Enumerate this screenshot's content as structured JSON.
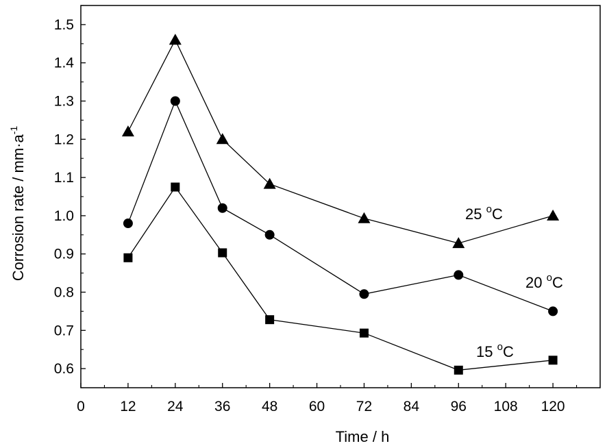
{
  "chart_data": {
    "type": "line",
    "xlabel": "Time / h",
    "ylabel": "Corrosion rate / mm·a",
    "ylabel_sup": "-1",
    "xlim": [
      0,
      132
    ],
    "ylim": [
      0.55,
      1.55
    ],
    "x_ticks": [
      0,
      12,
      24,
      36,
      48,
      60,
      72,
      84,
      96,
      108,
      120
    ],
    "y_ticks": [
      0.6,
      0.7,
      0.8,
      0.9,
      1.0,
      1.1,
      1.2,
      1.3,
      1.4,
      1.5
    ],
    "y_tick_labels": [
      "0.6",
      "0.7",
      "0.8",
      "0.9",
      "1.0",
      "1.1",
      "1.2",
      "1.3",
      "1.4",
      "1.5"
    ],
    "grid": false,
    "x": [
      12,
      24,
      36,
      48,
      72,
      96,
      120
    ],
    "series": [
      {
        "name": "15 °C",
        "label_text": "15 ",
        "label_sup": "o",
        "label_unit": "C",
        "marker": "square",
        "values": [
          0.89,
          1.075,
          0.903,
          0.728,
          0.693,
          0.596,
          0.622
        ]
      },
      {
        "name": "20 °C",
        "label_text": "20 ",
        "label_sup": "o",
        "label_unit": "C",
        "marker": "circle",
        "values": [
          0.98,
          1.3,
          1.02,
          0.95,
          0.795,
          0.845,
          0.75
        ]
      },
      {
        "name": "25 °C",
        "label_text": "25 ",
        "label_sup": "o",
        "label_unit": "C",
        "marker": "triangle",
        "values": [
          1.22,
          1.46,
          1.2,
          1.083,
          0.993,
          0.928,
          1.0
        ]
      }
    ]
  }
}
